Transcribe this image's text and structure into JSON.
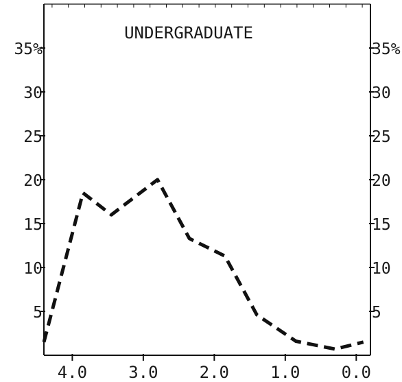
{
  "chart_data": {
    "type": "line",
    "title": "UNDERGRADUATE",
    "xlabel": "",
    "ylabel": "",
    "x_axis": {
      "reversed": true,
      "range": [
        4.4,
        -0.2
      ],
      "ticks": [
        4.0,
        3.0,
        2.0,
        1.0,
        0.0
      ],
      "tick_labels": [
        "4.0",
        "3.0",
        "2.0",
        "1.0",
        "0.0"
      ]
    },
    "y_axis": {
      "range": [
        0,
        40
      ],
      "ticks": [
        5,
        10,
        15,
        20,
        25,
        30,
        35
      ],
      "left_tick_labels": [
        "5",
        "10",
        "15",
        "20",
        "25",
        "30",
        "35%"
      ],
      "right_tick_labels": [
        "5",
        "10",
        "15",
        "20",
        "25",
        "30",
        "35%"
      ]
    },
    "grid": false,
    "line_style": "dashed",
    "series": [
      {
        "x": [
          4.4,
          3.85,
          3.45,
          2.8,
          2.35,
          1.85,
          1.4,
          0.85,
          0.3,
          -0.1
        ],
        "y": [
          1.5,
          18.5,
          16.0,
          20.0,
          13.3,
          11.3,
          4.6,
          1.6,
          0.7,
          1.5
        ]
      }
    ],
    "colors": {
      "line": "#111111",
      "axis": "#111111",
      "text": "#1a1a1a"
    }
  }
}
